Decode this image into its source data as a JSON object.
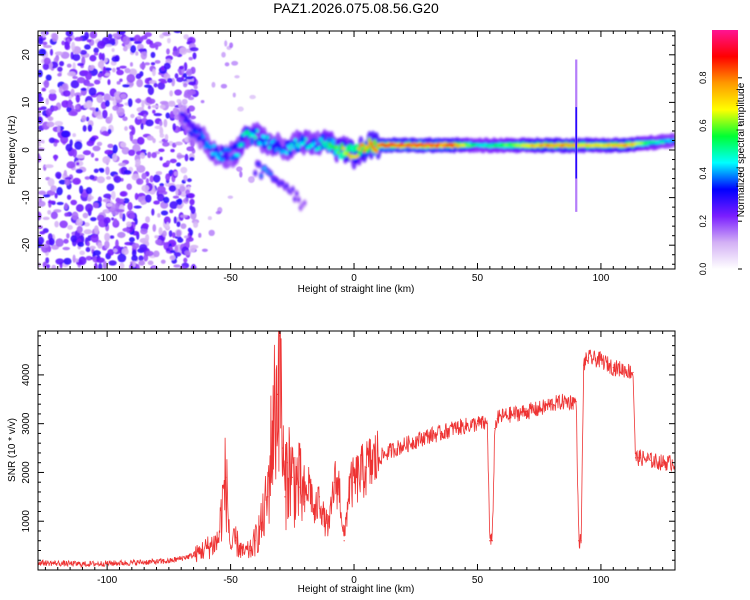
{
  "chart_data": [
    {
      "type": "heatmap",
      "title": "PAZ1.2026.075.08.56.G20",
      "xlabel": "Height of straight line (km)",
      "ylabel": "Frequency (Hz)",
      "xlim": [
        -128,
        130
      ],
      "ylim": [
        -25,
        25
      ],
      "x_ticks": [
        -100,
        -50,
        0,
        50,
        100
      ],
      "y_ticks": [
        20,
        10,
        0,
        -10,
        -20
      ],
      "colorbar": {
        "label": "Normalized spectral amplitude",
        "range": [
          0.0,
          1.0
        ],
        "ticks": [
          0.0,
          0.2,
          0.4,
          0.6,
          0.8
        ],
        "colors": [
          "#ffffff",
          "#d3b0f5",
          "#7a1dff",
          "#0000ff",
          "#00ffff",
          "#00ff33",
          "#ffff00",
          "#ff9900",
          "#ff0000",
          "#ff1493"
        ]
      },
      "noise_region": {
        "x_range": [
          -128,
          -70
        ],
        "y_range": [
          -25,
          25
        ]
      },
      "ridge": {
        "x": [
          -70,
          -66,
          -62,
          -58,
          -54,
          -50,
          -47,
          -44,
          -40,
          -36,
          -32,
          -28,
          -24,
          -20,
          -16,
          -12,
          -9,
          -6,
          -3,
          0,
          3,
          6,
          10,
          20,
          30,
          40,
          50,
          60,
          70,
          80,
          90,
          100,
          110,
          120,
          130
        ],
        "y": [
          8,
          4,
          3,
          0,
          -1,
          -1,
          0,
          3,
          3,
          2,
          1,
          0,
          1,
          2,
          1,
          2,
          1,
          0,
          0,
          -1,
          0,
          1,
          1,
          1,
          1,
          1,
          1,
          1,
          1,
          1,
          1,
          1,
          1,
          1.5,
          2
        ],
        "amplitude": [
          0.3,
          0.35,
          0.4,
          0.45,
          0.45,
          0.4,
          0.5,
          0.55,
          0.5,
          0.5,
          0.45,
          0.45,
          0.5,
          0.5,
          0.5,
          0.55,
          0.6,
          0.65,
          0.7,
          0.75,
          0.8,
          0.85,
          0.9,
          0.92,
          0.9,
          0.88,
          0.5,
          0.6,
          0.75,
          0.85,
          0.8,
          0.75,
          0.85,
          0.55,
          0.45
        ]
      },
      "secondary_branch": {
        "x": [
          -40,
          -36,
          -32,
          -28,
          -24,
          -20
        ],
        "y": [
          -4,
          -5,
          -6,
          -7,
          -9,
          -12
        ],
        "amplitude": [
          0.3,
          0.45,
          0.35,
          0.3,
          0.25,
          0.2
        ]
      },
      "vertical_spike": {
        "x": 90,
        "y_range": [
          -13,
          19
        ]
      }
    },
    {
      "type": "line",
      "xlabel": "Height of straight line (km)",
      "ylabel": "SNR (10 * v/v)",
      "xlim": [
        -128,
        130
      ],
      "ylim": [
        0,
        4900
      ],
      "x_ticks": [
        -100,
        -50,
        0,
        50,
        100
      ],
      "y_ticks": [
        1000,
        2000,
        3000,
        4000
      ],
      "color": "#ee3333",
      "series": [
        {
          "name": "SNR",
          "x": [
            -128,
            -110,
            -90,
            -75,
            -65,
            -58,
            -55,
            -52,
            -50,
            -48,
            -45,
            -42,
            -40,
            -37,
            -35,
            -33,
            -31,
            -30,
            -29,
            -28,
            -27,
            -25,
            -22,
            -20,
            -18,
            -16,
            -14,
            -12,
            -10,
            -8,
            -6,
            -4,
            -2,
            0,
            5,
            10,
            15,
            20,
            25,
            30,
            35,
            40,
            45,
            50,
            54,
            55,
            56,
            57,
            58,
            60,
            65,
            70,
            75,
            80,
            85,
            90,
            91,
            92,
            93,
            94,
            95,
            100,
            105,
            110,
            113,
            114,
            115,
            116,
            120,
            125,
            130
          ],
          "y": [
            150,
            120,
            150,
            180,
            300,
            500,
            600,
            1900,
            450,
            600,
            350,
            400,
            600,
            1000,
            1500,
            2900,
            3600,
            4800,
            2500,
            1500,
            2200,
            1900,
            1700,
            1400,
            1800,
            1100,
            1500,
            1000,
            900,
            1800,
            1700,
            600,
            1700,
            1800,
            2100,
            2300,
            2450,
            2550,
            2650,
            2750,
            2800,
            2900,
            2950,
            3000,
            3000,
            600,
            600,
            2900,
            3100,
            3150,
            3200,
            3250,
            3300,
            3400,
            3450,
            3450,
            600,
            600,
            4200,
            4300,
            4350,
            4300,
            4150,
            4100,
            4050,
            2300,
            2300,
            2300,
            2250,
            2200,
            2200
          ]
        }
      ]
    }
  ]
}
